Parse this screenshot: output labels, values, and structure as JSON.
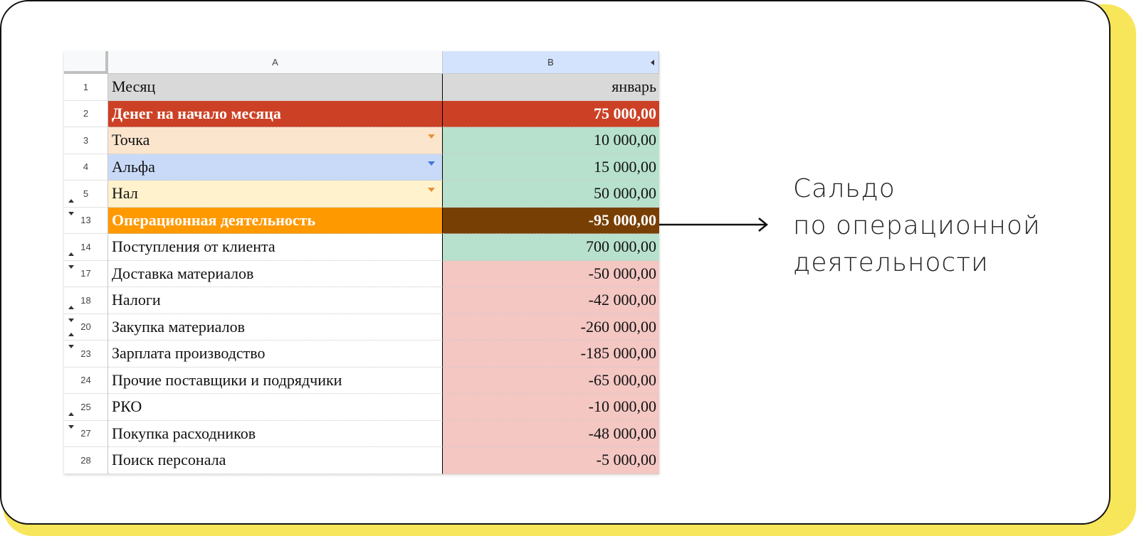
{
  "colors": {
    "yellow_shadow": "#f7e65a",
    "red_header": "#cc4125",
    "peach": "#fce5cd",
    "blue": "#c9daf8",
    "cream": "#fff2cc",
    "green": "#b7e1cd",
    "orange": "#ff9900",
    "brown": "#783f04",
    "pink": "#f4c7c3",
    "gray": "#d9d9d9"
  },
  "sheet": {
    "columns": [
      "A",
      "B"
    ],
    "rows": [
      {
        "num": "1",
        "a": "Месяц",
        "b": "январь",
        "a_bg": "#d9d9d9",
        "b_bg": "#d9d9d9"
      },
      {
        "num": "2",
        "a": "Денег на начало месяца",
        "b": "75 000,00",
        "a_bg": "#cc4125",
        "b_bg": "#cc4125",
        "bold": true
      },
      {
        "num": "3",
        "a": "Точка",
        "b": "10 000,00",
        "a_bg": "#fce5cd",
        "b_bg": "#b7e1cd",
        "dropdown": "#e69138"
      },
      {
        "num": "4",
        "a": "Альфа",
        "b": "15 000,00",
        "a_bg": "#c9daf8",
        "b_bg": "#b7e1cd",
        "dropdown": "#3c78d8"
      },
      {
        "num": "5",
        "a": "Нал",
        "b": "50 000,00",
        "a_bg": "#fff2cc",
        "b_bg": "#b7e1cd",
        "dropdown": "#e69138",
        "grp": "up"
      },
      {
        "num": "13",
        "a": "Операционная деятельность",
        "b": "-95 000,00",
        "a_bg": "#ff9900",
        "b_bg": "#783f04",
        "bold": true,
        "grp": "down"
      },
      {
        "num": "14",
        "a": "Поступления от клиента",
        "b": "700 000,00",
        "a_bg": "#ffffff",
        "b_bg": "#b7e1cd",
        "grp": "up"
      },
      {
        "num": "17",
        "a": "Доставка материалов",
        "b": "-50 000,00",
        "a_bg": "#ffffff",
        "b_bg": "#f4c7c3",
        "grp": "down"
      },
      {
        "num": "18",
        "a": "Налоги",
        "b": "-42 000,00",
        "a_bg": "#ffffff",
        "b_bg": "#f4c7c3",
        "grp": "up"
      },
      {
        "num": "20",
        "a": "Закупка материалов",
        "b": "-260 000,00",
        "a_bg": "#ffffff",
        "b_bg": "#f4c7c3",
        "grp": "both"
      },
      {
        "num": "23",
        "a": "Зарплата производство",
        "b": "-185 000,00",
        "a_bg": "#ffffff",
        "b_bg": "#f4c7c3",
        "grp": "down"
      },
      {
        "num": "24",
        "a": "Прочие поставщики и подрядчики",
        "b": "-65 000,00",
        "a_bg": "#ffffff",
        "b_bg": "#f4c7c3"
      },
      {
        "num": "25",
        "a": "РКО",
        "b": "-10 000,00",
        "a_bg": "#ffffff",
        "b_bg": "#f4c7c3",
        "grp": "up"
      },
      {
        "num": "27",
        "a": "Покупка расходников",
        "b": "-48 000,00",
        "a_bg": "#ffffff",
        "b_bg": "#f4c7c3",
        "grp": "down"
      },
      {
        "num": "28",
        "a": "Поиск персонала",
        "b": "-5 000,00",
        "a_bg": "#ffffff",
        "b_bg": "#f4c7c3"
      }
    ]
  },
  "annotation": {
    "lines": [
      "Сальдо",
      "по операционной",
      "деятельности"
    ]
  }
}
